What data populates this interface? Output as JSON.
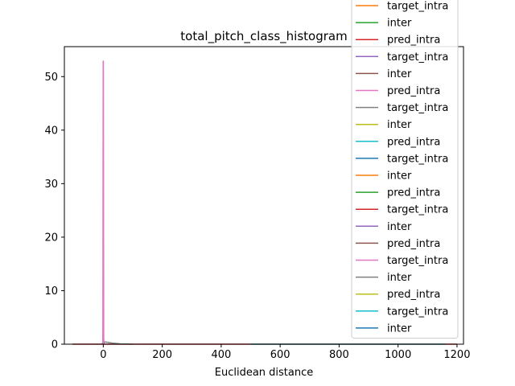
{
  "chart_data": {
    "type": "line",
    "title": "total_pitch_class_histogram",
    "xlabel": "Euclidean distance",
    "ylabel": "",
    "xlim": [
      -132,
      1222
    ],
    "ylim": [
      0,
      55.6
    ],
    "xticks": [
      0,
      200,
      400,
      600,
      800,
      1000,
      1200
    ],
    "yticks": [
      0,
      10,
      20,
      30,
      40,
      50
    ],
    "legend_position": "upper right (extends above the axes)",
    "legend_entries": [
      {
        "label": "target_intra",
        "color": "#ff7f0e"
      },
      {
        "label": "inter",
        "color": "#2ca02c"
      },
      {
        "label": "pred_intra",
        "color": "#d62728"
      },
      {
        "label": "target_intra",
        "color": "#9467bd"
      },
      {
        "label": "inter",
        "color": "#8c564b"
      },
      {
        "label": "pred_intra",
        "color": "#e377c2"
      },
      {
        "label": "target_intra",
        "color": "#7f7f7f"
      },
      {
        "label": "inter",
        "color": "#bcbd22"
      },
      {
        "label": "pred_intra",
        "color": "#17becf"
      },
      {
        "label": "target_intra",
        "color": "#1f77b4"
      },
      {
        "label": "inter",
        "color": "#ff7f0e"
      },
      {
        "label": "pred_intra",
        "color": "#2ca02c"
      },
      {
        "label": "target_intra",
        "color": "#d62728"
      },
      {
        "label": "inter",
        "color": "#9467bd"
      },
      {
        "label": "pred_intra",
        "color": "#8c564b"
      },
      {
        "label": "target_intra",
        "color": "#e377c2"
      },
      {
        "label": "inter",
        "color": "#7f7f7f"
      },
      {
        "label": "pred_intra",
        "color": "#bcbd22"
      },
      {
        "label": "target_intra",
        "color": "#17becf"
      },
      {
        "label": "inter",
        "color": "#1f77b4"
      }
    ],
    "series": [
      {
        "color": "#d62728",
        "x": [
          -105,
          -60,
          -20,
          20,
          60,
          200,
          400,
          600,
          800,
          1000,
          1200
        ],
        "y": [
          0,
          0,
          0,
          0,
          0,
          0,
          0,
          0,
          0,
          0,
          0
        ]
      },
      {
        "color": "#17becf",
        "x": [
          500,
          700,
          900,
          1100,
          1160
        ],
        "y": [
          0,
          0,
          0,
          0,
          0
        ]
      },
      {
        "color": "#7f7f7f",
        "x": [
          -5,
          0,
          10,
          20,
          30,
          60,
          100
        ],
        "y": [
          0,
          0.4,
          0.4,
          0.3,
          0.2,
          0.05,
          0
        ]
      },
      {
        "color": "#2ca02c",
        "x": [
          -2,
          0,
          1,
          3
        ],
        "y": [
          0,
          3.3,
          1.0,
          0
        ]
      },
      {
        "color": "#1f77b4",
        "x": [
          -2,
          0,
          1,
          3
        ],
        "y": [
          0,
          1.2,
          0.5,
          0
        ]
      },
      {
        "color": "#e377c2",
        "x": [
          -1.5,
          -0.3,
          0,
          0.3,
          1.5
        ],
        "y": [
          0,
          52.9,
          52.9,
          52.9,
          0
        ]
      }
    ]
  }
}
